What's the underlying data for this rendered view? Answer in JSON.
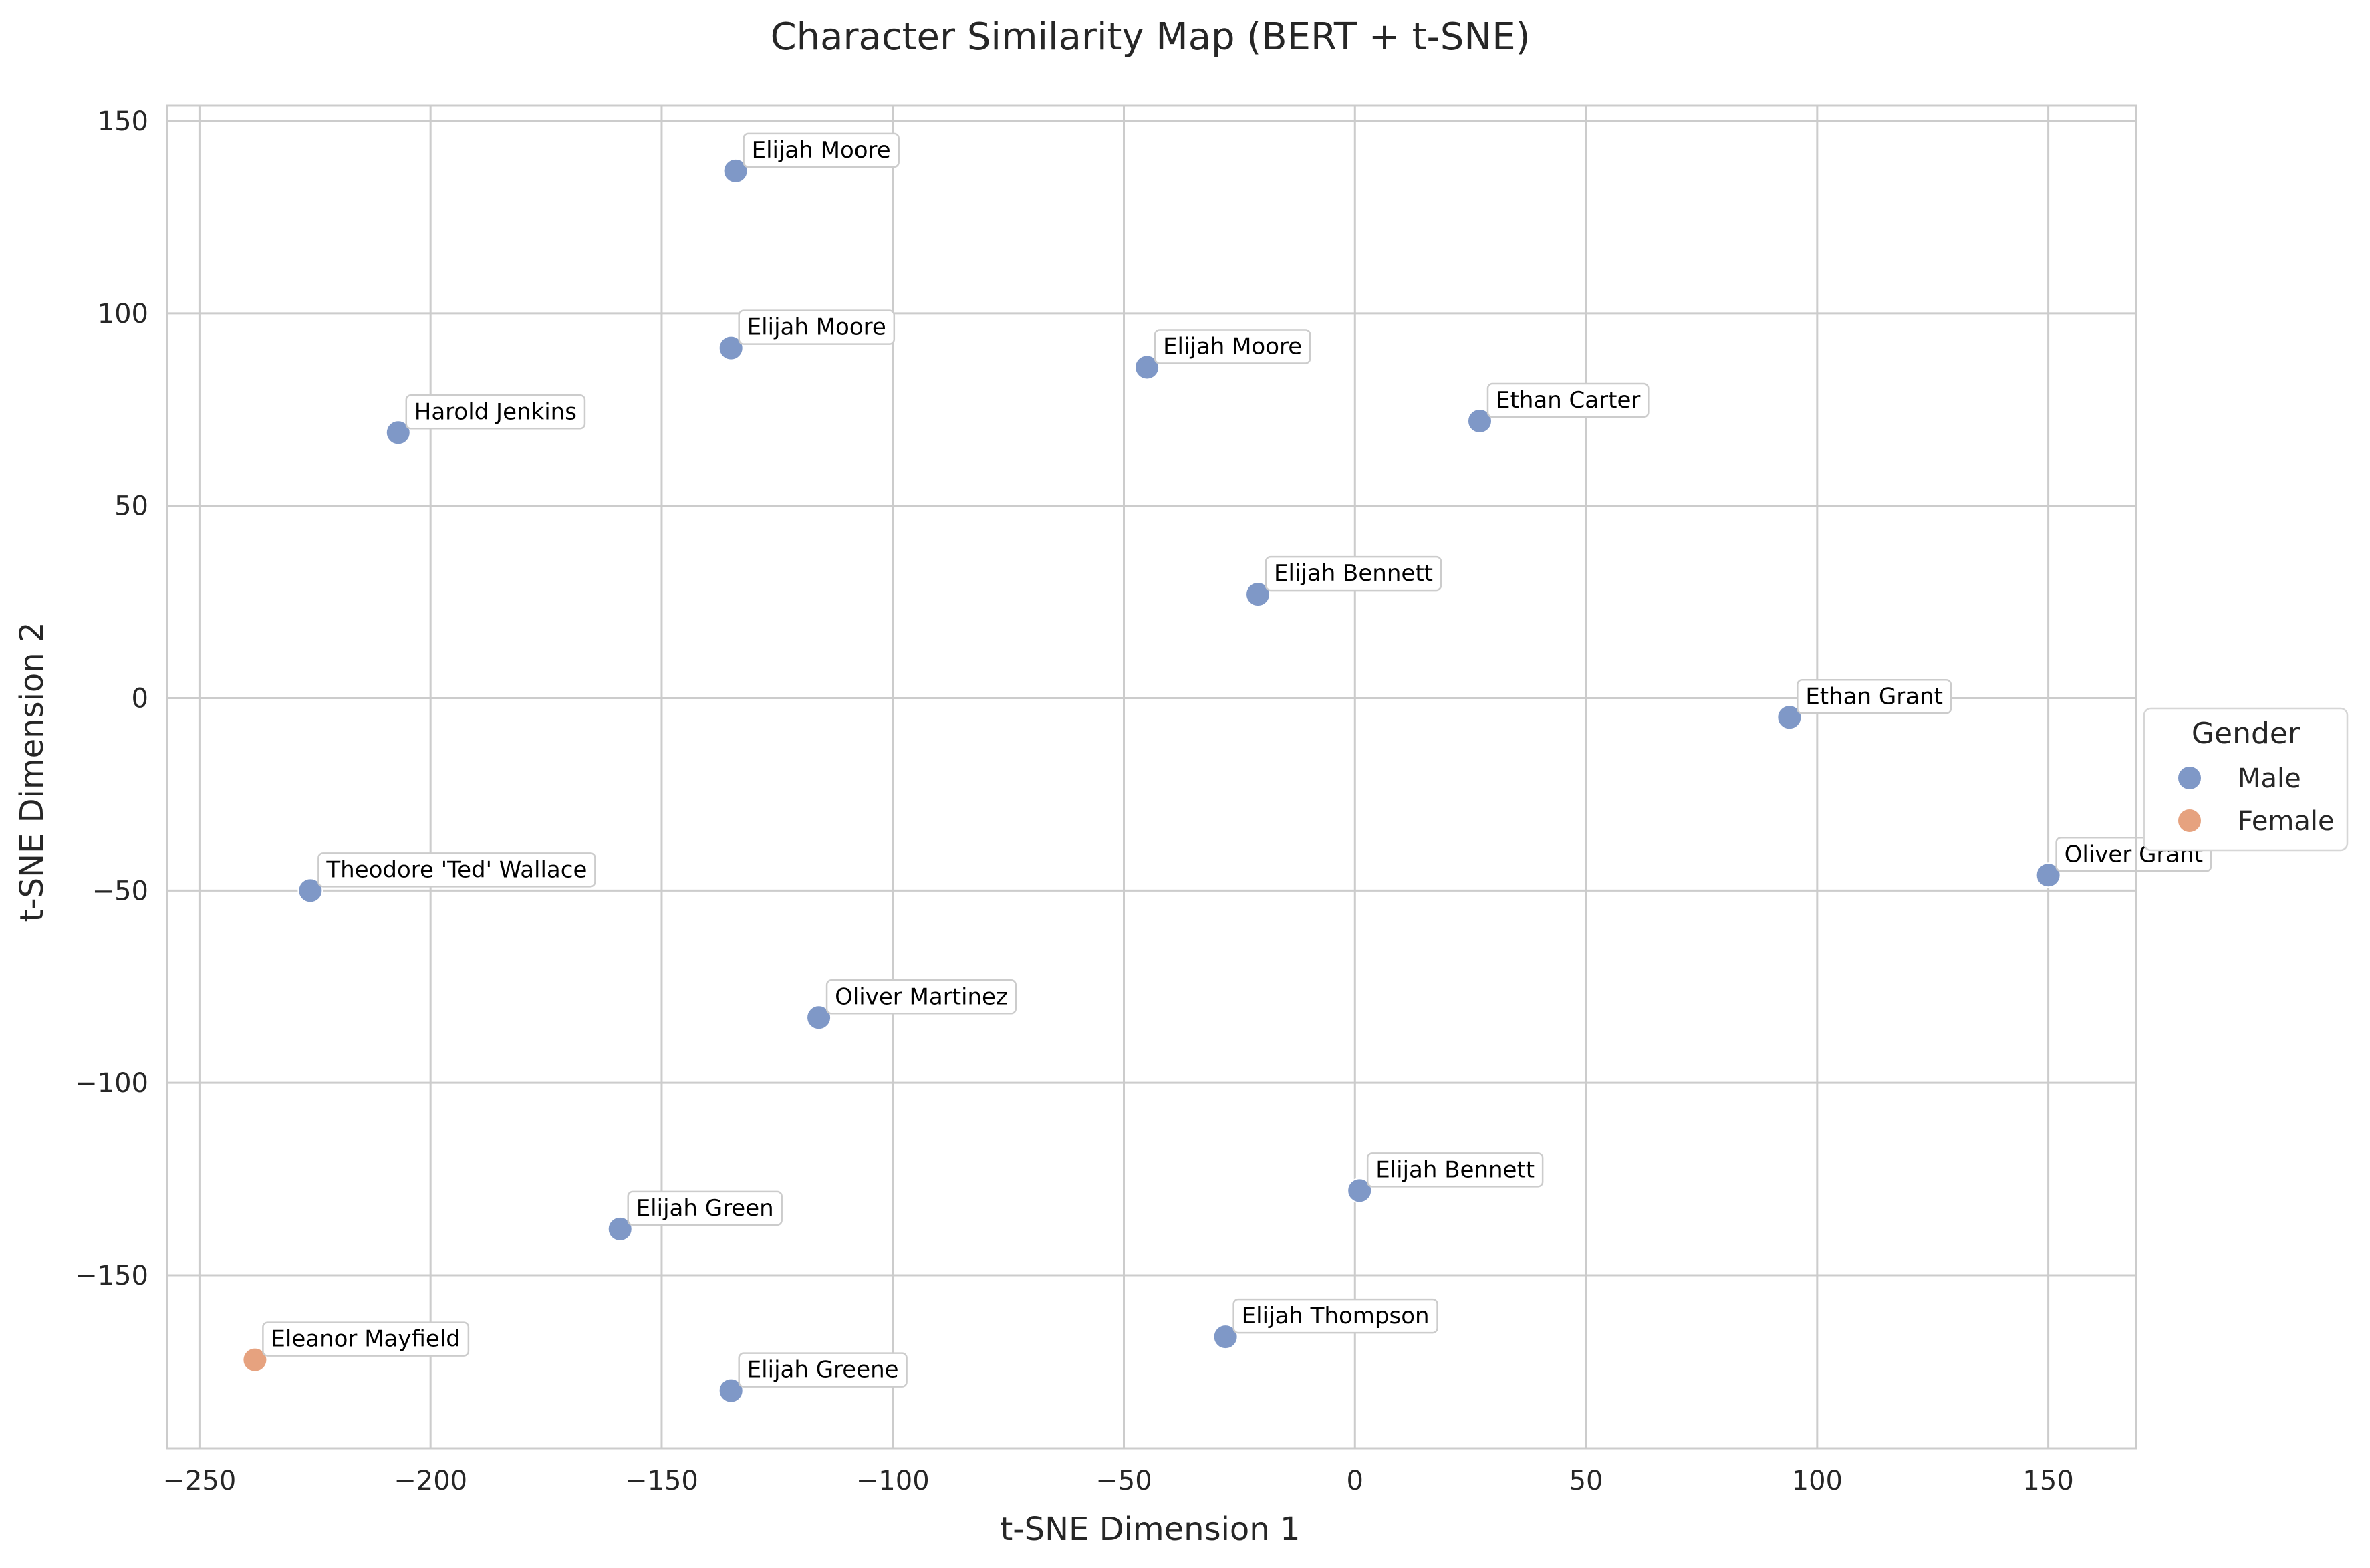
{
  "chart_data": {
    "type": "scatter",
    "title": "Character Similarity Map (BERT + t-SNE)",
    "xlabel": "t-SNE Dimension 1",
    "ylabel": "t-SNE Dimension 2",
    "xlim": [
      -257,
      169
    ],
    "ylim": [
      -195,
      154
    ],
    "x_ticks": [
      -250,
      -200,
      -150,
      -100,
      -50,
      0,
      50,
      100,
      150
    ],
    "y_ticks": [
      -150,
      -100,
      -50,
      0,
      50,
      100,
      150
    ],
    "x_tick_labels": [
      "−250",
      "−200",
      "−150",
      "−100",
      "−50",
      "0",
      "50",
      "100",
      "150"
    ],
    "y_tick_labels": [
      "−150",
      "−100",
      "−50",
      "0",
      "50",
      "100",
      "150"
    ],
    "grid": true,
    "legend": {
      "title": "Gender",
      "placement": "right",
      "entries": [
        {
          "label": "Male",
          "color": "#7f98c7"
        },
        {
          "label": "Female",
          "color": "#e6a27f"
        }
      ]
    },
    "points": [
      {
        "label": "Elijah Moore",
        "x": -134,
        "y": 137,
        "group": "Male"
      },
      {
        "label": "Elijah Moore",
        "x": -135,
        "y": 91,
        "group": "Male"
      },
      {
        "label": "Elijah Moore",
        "x": -45,
        "y": 86,
        "group": "Male"
      },
      {
        "label": "Ethan Carter",
        "x": 27,
        "y": 72,
        "group": "Male"
      },
      {
        "label": "Harold Jenkins",
        "x": -207,
        "y": 69,
        "group": "Male"
      },
      {
        "label": "Elijah Bennett",
        "x": -21,
        "y": 27,
        "group": "Male"
      },
      {
        "label": "Ethan Grant",
        "x": 94,
        "y": -5,
        "group": "Male"
      },
      {
        "label": "Oliver Grant",
        "x": 150,
        "y": -46,
        "group": "Male"
      },
      {
        "label": "Theodore 'Ted' Wallace",
        "x": -226,
        "y": -50,
        "group": "Male"
      },
      {
        "label": "Oliver Martinez",
        "x": -116,
        "y": -83,
        "group": "Male"
      },
      {
        "label": "Elijah Bennett",
        "x": 1,
        "y": -128,
        "group": "Male"
      },
      {
        "label": "Elijah Green",
        "x": -159,
        "y": -138,
        "group": "Male"
      },
      {
        "label": "Elijah Thompson",
        "x": -28,
        "y": -166,
        "group": "Male"
      },
      {
        "label": "Eleanor Mayfield",
        "x": -238,
        "y": -172,
        "group": "Female"
      },
      {
        "label": "Elijah Greene",
        "x": -135,
        "y": -180,
        "group": "Male"
      }
    ]
  }
}
